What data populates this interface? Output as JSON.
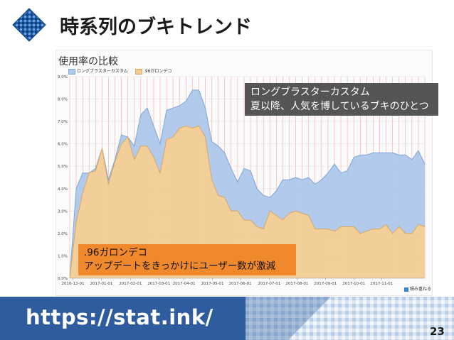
{
  "slide": {
    "title": "時系列のブキトレンド",
    "page_number": "23",
    "url": "https://stat.ink/"
  },
  "chart": {
    "heading": "使用率の比較",
    "legend": [
      {
        "label": "ロングブラスターカスタム",
        "color": "#aec7ea"
      },
      {
        "label": ".96ガロンデコ",
        "color": "#f1cc93"
      }
    ],
    "stack_label": "積み重ねる"
  },
  "callouts": {
    "top_line1": "ロングブラスターカスタム",
    "top_line2": "夏以降、人気を博しているブキのひとつ",
    "bottom_line1": ".96ガロンデコ",
    "bottom_line2": "アップデートをきっかけにユーザー数が激減"
  },
  "chart_data": {
    "type": "area",
    "stacked": true,
    "y_ticks": [
      "0.0%",
      "1.0%",
      "2.0%",
      "3.0%",
      "4.0%",
      "5.0%",
      "6.0%",
      "7.0%",
      "8.0%",
      "9.0%"
    ],
    "ylim": [
      0,
      9
    ],
    "x_ticks": [
      "2016-12-01",
      "2017-01-01",
      "2017-02-01",
      "2017-03-01",
      "2017-04-01",
      "2017-05-01",
      "2017-06-01",
      "2017-07-01",
      "2017-08-01",
      "2017-09-01",
      "2017-10-01",
      "2017-11-01"
    ],
    "x_tick_positions": [
      0.5,
      4.9,
      9.4,
      13.8,
      17.7,
      22.1,
      26.4,
      30.9,
      35.2,
      39.6,
      44.0,
      48.3
    ],
    "series": [
      {
        "name": ".96ガロンデコ",
        "color": "#f1cc93",
        "values": [
          0.0,
          2.5,
          3.8,
          4.7,
          4.8,
          5.8,
          4.2,
          5.2,
          6.0,
          6.3,
          5.3,
          5.9,
          5.9,
          5.4,
          4.7,
          6.2,
          6.3,
          6.7,
          6.8,
          6.7,
          6.8,
          6.3,
          4.4,
          3.7,
          3.6,
          3.0,
          3.0,
          2.6,
          2.6,
          2.3,
          2.2,
          3.0,
          2.8,
          2.6,
          2.9,
          3.0,
          2.9,
          2.8,
          2.2,
          2.2,
          2.2,
          2.1,
          2.3,
          2.3,
          2.3,
          2.0,
          2.1,
          2.2,
          2.2,
          2.4,
          2.0,
          2.3,
          2.0,
          2.0,
          2.4,
          2.3
        ]
      },
      {
        "name": "ロングブラスターカスタム",
        "color": "#aec7ea",
        "values": [
          0.0,
          1.5,
          0.9,
          0.0,
          0.1,
          0.0,
          0.2,
          0.1,
          0.4,
          0.0,
          0.6,
          1.4,
          1.7,
          1.4,
          1.3,
          1.3,
          1.3,
          1.0,
          1.1,
          1.7,
          1.6,
          1.3,
          1.7,
          2.2,
          2.0,
          1.9,
          1.3,
          2.3,
          2.2,
          1.7,
          1.5,
          0.6,
          1.1,
          1.8,
          1.5,
          1.5,
          1.5,
          1.7,
          2.0,
          2.2,
          2.5,
          3.0,
          2.4,
          2.5,
          3.1,
          3.5,
          3.4,
          3.4,
          3.4,
          3.2,
          3.6,
          3.2,
          3.5,
          3.3,
          3.3,
          2.8
        ]
      }
    ]
  }
}
